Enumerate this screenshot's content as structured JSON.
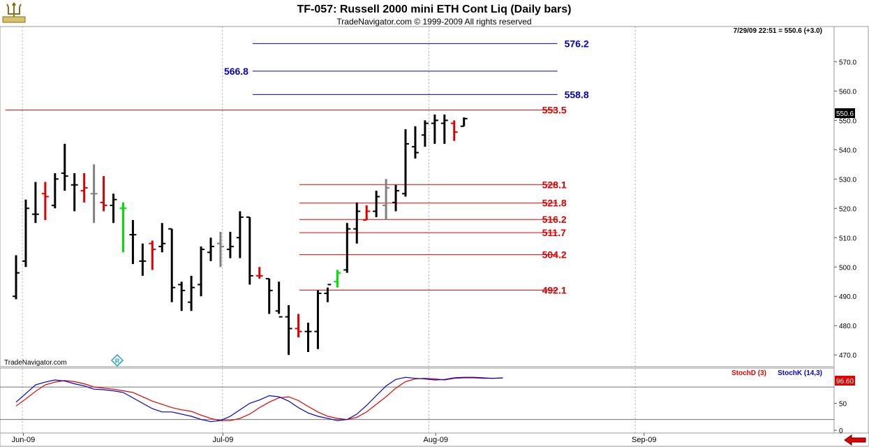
{
  "header": {
    "title": "TF-057:  Russell 2000 mini ETH Cont Liq  (Daily bars)",
    "copyright": "TradeNavigator.com © 1999-2009 All rights reserved",
    "quote": "7/29/09 22:51 = 550.6 (+3.0)",
    "watermark": "TradeNavigator.com"
  },
  "colors": {
    "up_bar": "#000000",
    "down_bar": "#e00000",
    "neutral_bar": "#808080",
    "signal_bar": "#00dd00",
    "blue_level": "#0000c8",
    "red_level": "#e00000",
    "stoch_d": "#e00000",
    "stoch_k": "#0000c8"
  },
  "icons": {
    "logo": "trident-logo-icon",
    "back": "red-arrow-left-icon",
    "marker": "diamond-r-icon"
  },
  "chart_data": [
    {
      "type": "ohlc",
      "ylim": [
        466,
        582
      ],
      "y_ticks": [
        470,
        480,
        490,
        500,
        510,
        520,
        530,
        540,
        550,
        560,
        570
      ],
      "last_price": "550.6",
      "x_labels": [
        {
          "label": "Jun-09",
          "bar": 0.75
        },
        {
          "label": "Jul-09",
          "bar": 21.25
        },
        {
          "label": "Aug-09",
          "bar": 43.1
        },
        {
          "label": "Sep-09",
          "bar": 64.5
        }
      ],
      "vgrid_bars": [
        0.65,
        21.2,
        42.4,
        63.6
      ],
      "bars": [
        {
          "o": 490.0,
          "h": 504.0,
          "l": 489.0,
          "c": 498.0,
          "col": "up"
        },
        {
          "o": 502.0,
          "h": 523.0,
          "l": 500.0,
          "c": 520.0,
          "col": "up"
        },
        {
          "o": 518.0,
          "h": 529.0,
          "l": 515.0,
          "c": 518.0,
          "col": "up"
        },
        {
          "o": 525.0,
          "h": 529.0,
          "l": 516.0,
          "c": 524.0,
          "col": "down"
        },
        {
          "o": 521.0,
          "h": 532.0,
          "l": 520.0,
          "c": 530.0,
          "col": "up"
        },
        {
          "o": 532.0,
          "h": 542.0,
          "l": 526.0,
          "c": 531.0,
          "col": "up"
        },
        {
          "o": 528.0,
          "h": 532.0,
          "l": 519.0,
          "c": 528.0,
          "col": "up"
        },
        {
          "o": 526.0,
          "h": 532.0,
          "l": 522.0,
          "c": 527.0,
          "col": "down"
        },
        {
          "o": 525.0,
          "h": 535.0,
          "l": 515.0,
          "c": 525.0,
          "col": "neutral"
        },
        {
          "o": 522.0,
          "h": 531.0,
          "l": 519.0,
          "c": 521.0,
          "col": "down"
        },
        {
          "o": 521.0,
          "h": 525.0,
          "l": 515.0,
          "c": 523.0,
          "col": "up"
        },
        {
          "o": 520.0,
          "h": 522.0,
          "l": 505.0,
          "c": 520.0,
          "col": "signal"
        },
        {
          "o": 511.0,
          "h": 516.0,
          "l": 501.0,
          "c": 511.0,
          "col": "up"
        },
        {
          "o": 502.0,
          "h": 508.0,
          "l": 497.0,
          "c": 502.0,
          "col": "up"
        },
        {
          "o": 508.0,
          "h": 509.0,
          "l": 499.0,
          "c": 506.0,
          "col": "down"
        },
        {
          "o": 507.0,
          "h": 515.0,
          "l": 505.0,
          "c": 508.0,
          "col": "up"
        },
        {
          "o": 513.0,
          "h": 513.0,
          "l": 488.0,
          "c": 493.0,
          "col": "up"
        },
        {
          "o": 494.0,
          "h": 495.0,
          "l": 485.0,
          "c": 492.0,
          "col": "up"
        },
        {
          "o": 488.0,
          "h": 497.0,
          "l": 485.0,
          "c": 493.0,
          "col": "up"
        },
        {
          "o": 494.0,
          "h": 507.0,
          "l": 490.0,
          "c": 506.0,
          "col": "up"
        },
        {
          "o": 505.0,
          "h": 510.0,
          "l": 502.0,
          "c": 507.0,
          "col": "up"
        },
        {
          "o": 508.0,
          "h": 512.0,
          "l": 500.0,
          "c": 507.0,
          "col": "neutral"
        },
        {
          "o": 506.0,
          "h": 512.0,
          "l": 503.0,
          "c": 507.0,
          "col": "up"
        },
        {
          "o": 510.0,
          "h": 519.0,
          "l": 503.0,
          "c": 517.0,
          "col": "up"
        },
        {
          "o": 517.0,
          "h": 517.0,
          "l": 494.0,
          "c": 497.0,
          "col": "up"
        },
        {
          "o": 497.0,
          "h": 500.0,
          "l": 496.0,
          "c": 497.0,
          "col": "down"
        },
        {
          "o": 496.0,
          "h": 496.0,
          "l": 484.0,
          "c": 492.0,
          "col": "up"
        },
        {
          "o": 485.0,
          "h": 495.0,
          "l": 484.0,
          "c": 483.0,
          "col": "up"
        },
        {
          "o": 483.0,
          "h": 487.0,
          "l": 470.0,
          "c": 479.0,
          "col": "up"
        },
        {
          "o": 479.0,
          "h": 484.0,
          "l": 476.0,
          "c": 478.0,
          "col": "down"
        },
        {
          "o": 478.0,
          "h": 481.0,
          "l": 471.0,
          "c": 478.0,
          "col": "up"
        },
        {
          "o": 478.0,
          "h": 492.0,
          "l": 472.0,
          "c": 491.0,
          "col": "up"
        },
        {
          "o": 491.0,
          "h": 493.0,
          "l": 488.0,
          "c": 494.0,
          "col": "up"
        },
        {
          "o": 495.0,
          "h": 499.0,
          "l": 493.0,
          "c": 498.0,
          "col": "signal"
        },
        {
          "o": 499.0,
          "h": 515.0,
          "l": 498.0,
          "c": 513.0,
          "col": "up"
        },
        {
          "o": 513.0,
          "h": 522.0,
          "l": 508.0,
          "c": 519.0,
          "col": "up"
        },
        {
          "o": 516.0,
          "h": 521.0,
          "l": 516.0,
          "c": 519.0,
          "col": "down"
        },
        {
          "o": 519.0,
          "h": 526.0,
          "l": 517.0,
          "c": 524.0,
          "col": "up"
        },
        {
          "o": 521.0,
          "h": 530.0,
          "l": 516.0,
          "c": 527.0,
          "col": "neutral"
        },
        {
          "o": 522.0,
          "h": 528.0,
          "l": 519.0,
          "c": 526.0,
          "col": "up"
        },
        {
          "o": 525.0,
          "h": 547.0,
          "l": 524.0,
          "c": 542.0,
          "col": "up"
        },
        {
          "o": 541.0,
          "h": 548.0,
          "l": 537.0,
          "c": 539.0,
          "col": "up"
        },
        {
          "o": 545.0,
          "h": 550.0,
          "l": 541.0,
          "c": 549.0,
          "col": "up"
        },
        {
          "o": 549.0,
          "h": 552.0,
          "l": 542.0,
          "c": 550.0,
          "col": "up"
        },
        {
          "o": 549.0,
          "h": 552.0,
          "l": 542.0,
          "c": 550.0,
          "col": "up"
        },
        {
          "o": 549.0,
          "h": 550.0,
          "l": 543.0,
          "c": 546.0,
          "col": "down"
        },
        {
          "o": 548.0,
          "h": 551.0,
          "l": 548.0,
          "c": 550.6,
          "col": "up"
        }
      ],
      "levels": [
        {
          "label": "576.2",
          "value": 576.2,
          "color": "blue",
          "bar_from": 24.3,
          "bar_to": 55.6,
          "label_side": "right"
        },
        {
          "label": "566.8",
          "value": 566.8,
          "color": "blue",
          "bar_from": 24.3,
          "bar_to": 55.6,
          "label_side": "left"
        },
        {
          "label": "558.8",
          "value": 558.8,
          "color": "blue",
          "bar_from": 24.3,
          "bar_to": 55.6,
          "label_side": "right"
        },
        {
          "label": "553.5",
          "value": 553.5,
          "color": "red",
          "bar_from": -1.1,
          "bar_to": 55.6,
          "label_side": "right"
        },
        {
          "label": "528.1",
          "value": 528.1,
          "color": "red",
          "bar_from": 29.1,
          "bar_to": 55.6,
          "label_side": "right"
        },
        {
          "label": "521.8",
          "value": 521.8,
          "color": "red",
          "bar_from": 29.1,
          "bar_to": 55.6,
          "label_side": "right"
        },
        {
          "label": "516.2",
          "value": 516.2,
          "color": "red",
          "bar_from": 29.1,
          "bar_to": 55.6,
          "label_side": "right"
        },
        {
          "label": "511.7",
          "value": 511.7,
          "color": "red",
          "bar_from": 29.1,
          "bar_to": 55.6,
          "label_side": "right"
        },
        {
          "label": "504.2",
          "value": 504.2,
          "color": "red",
          "bar_from": 29.1,
          "bar_to": 55.6,
          "label_side": "right"
        },
        {
          "label": "492.1",
          "value": 492.1,
          "color": "red",
          "bar_from": 29.1,
          "bar_to": 55.6,
          "label_side": "right"
        }
      ]
    },
    {
      "type": "line",
      "ylim": [
        -5,
        115
      ],
      "y_ticks": [
        0,
        50
      ],
      "hlines": [
        20,
        80
      ],
      "last_value": "96.60",
      "legend": [
        {
          "name": "StochD (3)",
          "color": "red"
        },
        {
          "name": "StochK (14,3)",
          "color": "blue"
        }
      ],
      "series": [
        {
          "name": "StochD (3)",
          "color": "red",
          "values": [
            45,
            58,
            72,
            84,
            89,
            92,
            90,
            86,
            80,
            78,
            76,
            73,
            70,
            62,
            54,
            48,
            42,
            38,
            35,
            28,
            22,
            18,
            18,
            22,
            30,
            42,
            52,
            60,
            62,
            55,
            44,
            34,
            26,
            22,
            20,
            24,
            34,
            48,
            62,
            78,
            90,
            95,
            96,
            95,
            93,
            96,
            97,
            97,
            96,
            96,
            97
          ]
        },
        {
          "name": "StochK (14,3)",
          "color": "blue",
          "values": [
            52,
            68,
            84,
            89,
            93,
            91,
            86,
            82,
            76,
            75,
            73,
            70,
            60,
            50,
            40,
            34,
            34,
            30,
            26,
            20,
            16,
            18,
            26,
            38,
            50,
            56,
            64,
            62,
            54,
            42,
            32,
            26,
            22,
            18,
            20,
            30,
            46,
            64,
            82,
            94,
            98,
            96,
            95,
            93,
            94,
            97,
            98,
            98,
            97,
            96,
            97
          ]
        }
      ]
    }
  ]
}
